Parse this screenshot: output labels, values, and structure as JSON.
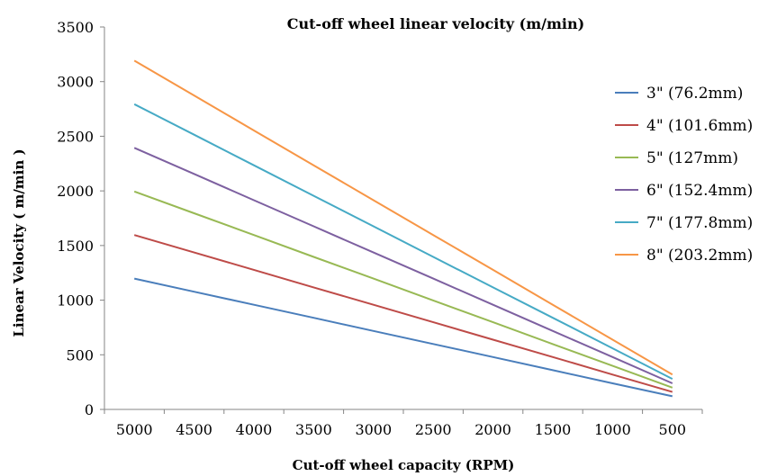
{
  "chart_data": {
    "type": "line",
    "title": "Cut-off wheel linear velocity (m/min)",
    "xlabel": "Cut-off wheel capacity  (RPM)",
    "ylabel": "Linear Velocity ( m/min )",
    "categories": [
      "5000",
      "4500",
      "4000",
      "3500",
      "3000",
      "2500",
      "2000",
      "1500",
      "1000",
      "500"
    ],
    "yticks": [
      "0",
      "500",
      "1000",
      "1500",
      "2000",
      "2500",
      "3000",
      "3500"
    ],
    "ylim": [
      0,
      3500
    ],
    "grid": false,
    "legend_position": "right",
    "series": [
      {
        "name": "3\" (76.2mm)",
        "color": "#4a7ebb",
        "values": [
          1197,
          1077,
          958,
          838,
          718,
          599,
          479,
          359,
          239,
          120
        ]
      },
      {
        "name": "4\" (101.6mm)",
        "color": "#be4b48",
        "values": [
          1596,
          1436,
          1277,
          1117,
          958,
          798,
          638,
          479,
          319,
          160
        ]
      },
      {
        "name": "5\" (127mm)",
        "color": "#98b954",
        "values": [
          1995,
          1795,
          1596,
          1396,
          1197,
          997,
          798,
          598,
          399,
          199
        ]
      },
      {
        "name": "6\" (152.4mm)",
        "color": "#7d60a0",
        "values": [
          2394,
          2155,
          1915,
          1676,
          1436,
          1197,
          958,
          718,
          479,
          239
        ]
      },
      {
        "name": "7\" (177.8mm)",
        "color": "#46aac5",
        "values": [
          2793,
          2514,
          2234,
          1955,
          1676,
          1396,
          1117,
          838,
          559,
          279
        ]
      },
      {
        "name": "8\" (203.2mm)",
        "color": "#f79646",
        "values": [
          3192,
          2873,
          2553,
          2234,
          1915,
          1596,
          1277,
          958,
          638,
          319
        ]
      }
    ]
  }
}
